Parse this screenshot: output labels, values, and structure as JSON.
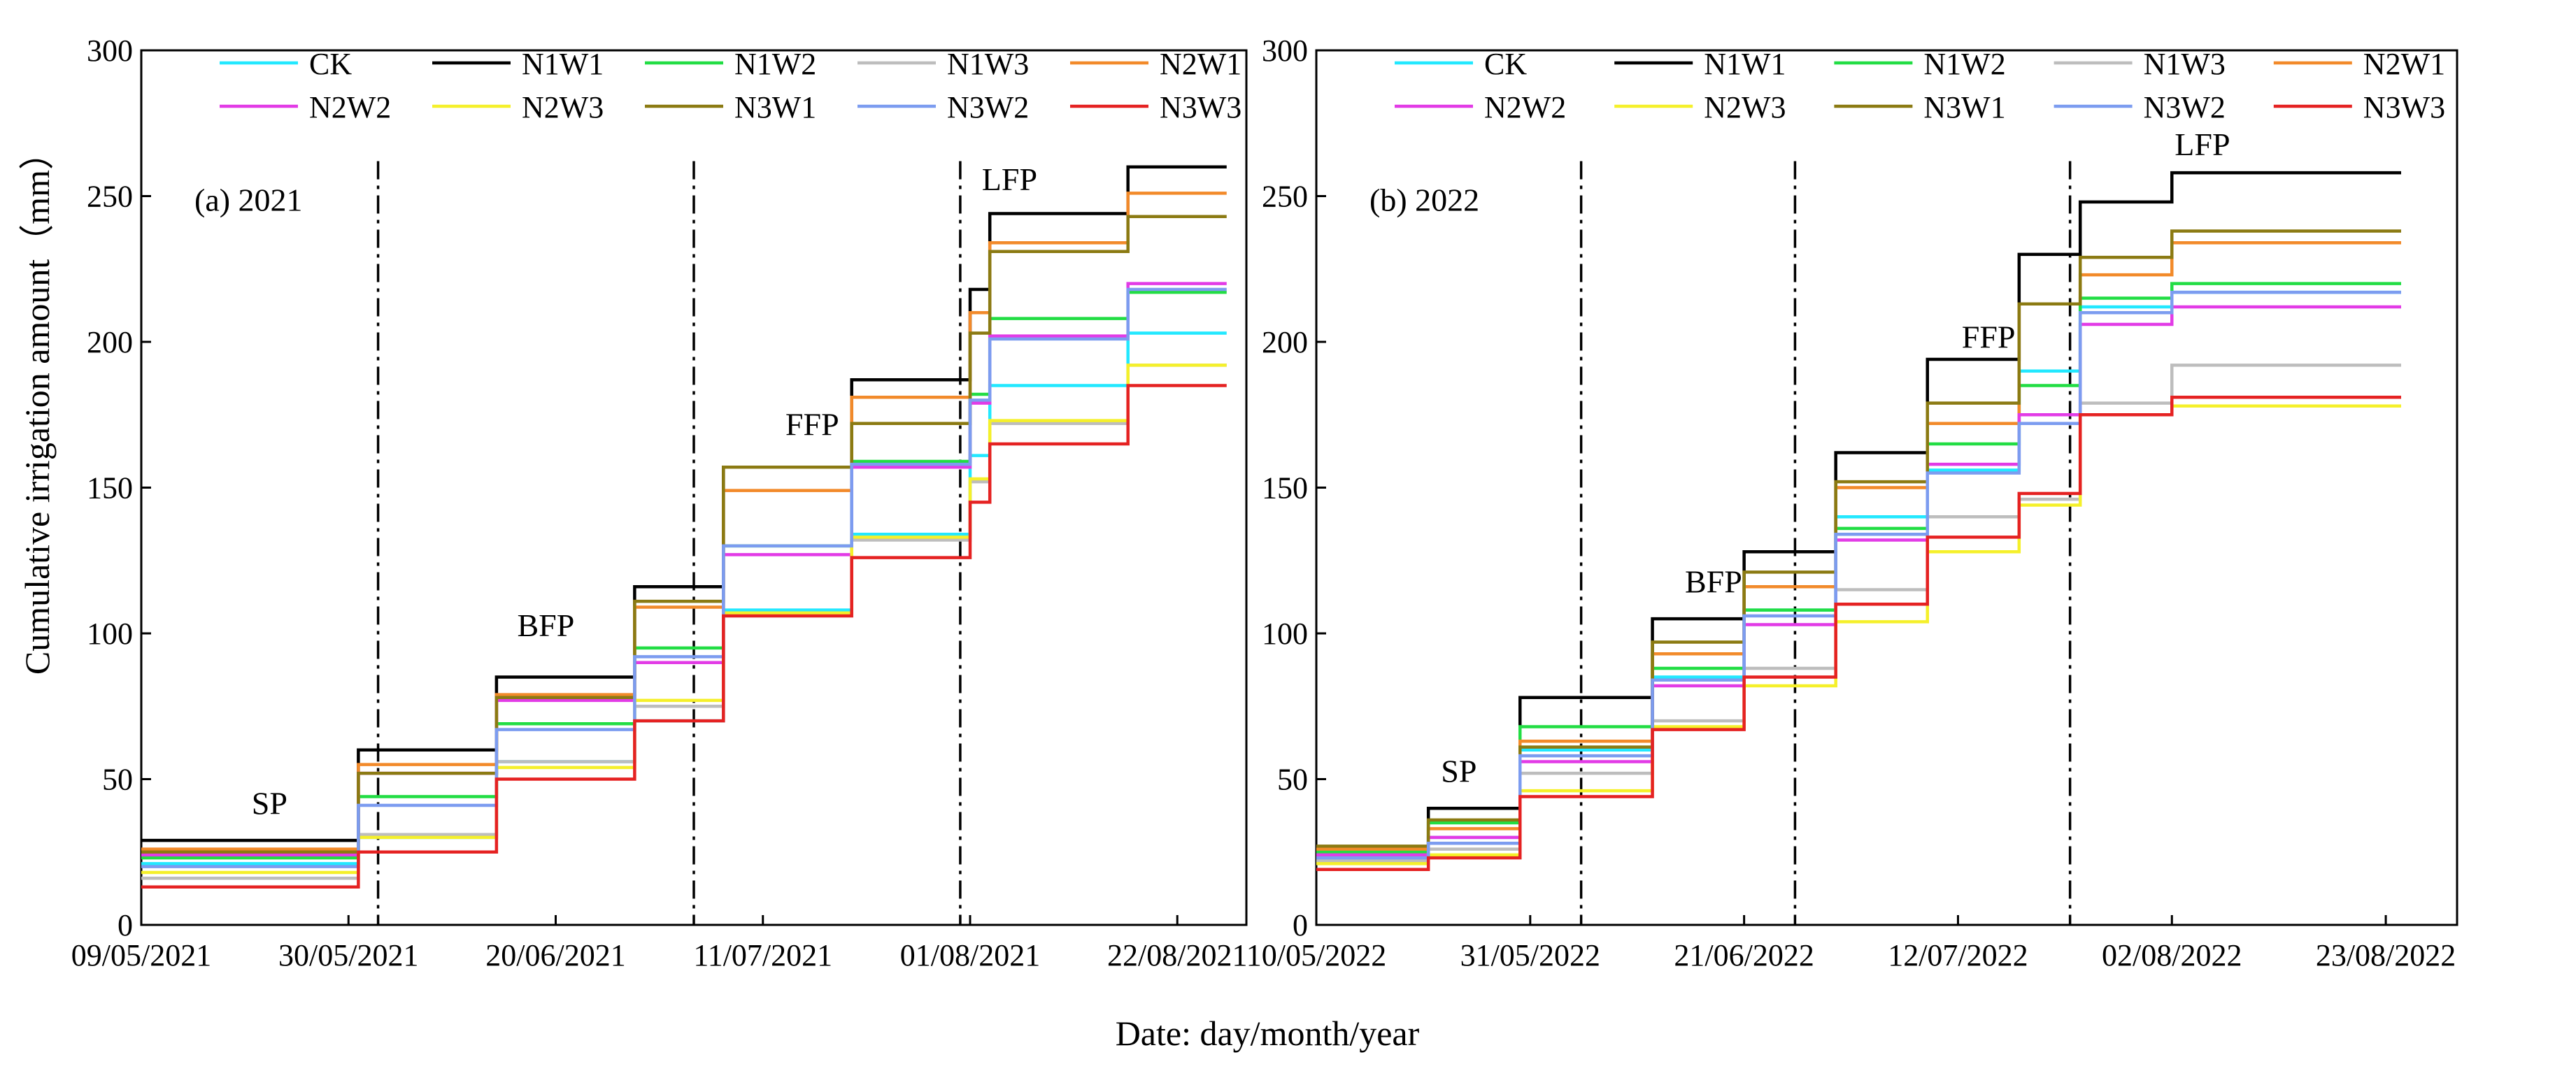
{
  "figure": {
    "ylabel": "Cumulative irrigation amount（mm）",
    "xlabel": "Date: day/month/year"
  },
  "series_styles": [
    {
      "name": "CK",
      "color": "#22e8ff"
    },
    {
      "name": "N1W1",
      "color": "#000000"
    },
    {
      "name": "N1W2",
      "color": "#22dd44"
    },
    {
      "name": "N1W3",
      "color": "#bdbdbd"
    },
    {
      "name": "N2W1",
      "color": "#f28a2a"
    },
    {
      "name": "N2W2",
      "color": "#e23be6"
    },
    {
      "name": "N2W3",
      "color": "#f5f02a"
    },
    {
      "name": "N3W1",
      "color": "#8b7a12"
    },
    {
      "name": "N3W2",
      "color": "#7c9cf0"
    },
    {
      "name": "N3W3",
      "color": "#e52222"
    }
  ],
  "chart_data": [
    {
      "type": "line",
      "step": true,
      "panel_label": "(a) 2021",
      "ylim": [
        0,
        300
      ],
      "yticks": [
        0,
        50,
        100,
        150,
        200,
        250,
        300
      ],
      "xlim": [
        "2021-05-09",
        "2021-08-29"
      ],
      "xticks": [
        "09/05/2021",
        "30/05/2021",
        "20/06/2021",
        "11/07/2021",
        "01/08/2021",
        "22/08/2021"
      ],
      "stage_dividers": [
        "2021-06-02",
        "2021-07-04",
        "2021-07-31"
      ],
      "stages": [
        {
          "label": "SP",
          "x": "2021-05-22",
          "y": 38
        },
        {
          "label": "BFP",
          "x": "2021-06-19",
          "y": 99
        },
        {
          "label": "FFP",
          "x": "2021-07-16",
          "y": 168
        },
        {
          "label": "LFP",
          "x": "2021-08-05",
          "y": 252
        }
      ],
      "step_dates": [
        "2021-05-09",
        "2021-05-31",
        "2021-06-14",
        "2021-06-28",
        "2021-07-07",
        "2021-07-20",
        "2021-08-01",
        "2021-08-03",
        "2021-08-17",
        "2021-08-27"
      ],
      "series": [
        {
          "name": "CK",
          "values": [
            21,
            30,
            56,
            70,
            108,
            134,
            161,
            185,
            203,
            203
          ]
        },
        {
          "name": "N1W1",
          "values": [
            29,
            60,
            85,
            116,
            157,
            187,
            218,
            244,
            260,
            260
          ]
        },
        {
          "name": "N1W2",
          "values": [
            23,
            44,
            69,
            95,
            130,
            159,
            182,
            208,
            217,
            217
          ]
        },
        {
          "name": "N1W3",
          "values": [
            16,
            31,
            56,
            75,
            106,
            132,
            152,
            172,
            192,
            192
          ]
        },
        {
          "name": "N2W1",
          "values": [
            26,
            55,
            79,
            109,
            149,
            181,
            210,
            234,
            251,
            251
          ]
        },
        {
          "name": "N2W2",
          "values": [
            24,
            52,
            77,
            90,
            127,
            157,
            179,
            202,
            220,
            220
          ]
        },
        {
          "name": "N2W3",
          "values": [
            18,
            30,
            54,
            77,
            107,
            133,
            153,
            173,
            192,
            192
          ]
        },
        {
          "name": "N3W1",
          "values": [
            25,
            52,
            78,
            111,
            157,
            172,
            203,
            231,
            243,
            243
          ]
        },
        {
          "name": "N3W2",
          "values": [
            20,
            41,
            67,
            92,
            130,
            158,
            180,
            201,
            218,
            218
          ]
        },
        {
          "name": "N3W3",
          "values": [
            13,
            25,
            50,
            70,
            106,
            126,
            145,
            165,
            185,
            185
          ]
        }
      ]
    },
    {
      "type": "line",
      "step": true,
      "panel_label": "(b) 2022",
      "ylim": [
        0,
        300
      ],
      "yticks": [
        0,
        50,
        100,
        150,
        200,
        250,
        300
      ],
      "xlim": [
        "2022-05-10",
        "2022-08-30"
      ],
      "xticks": [
        "10/05/2022",
        "31/05/2022",
        "21/06/2022",
        "12/07/2022",
        "02/08/2022",
        "23/08/2022"
      ],
      "stage_dividers": [
        "2022-06-05",
        "2022-06-26",
        "2022-07-23"
      ],
      "stages": [
        {
          "label": "SP",
          "x": "2022-05-24",
          "y": 49
        },
        {
          "label": "BFP",
          "x": "2022-06-18",
          "y": 114
        },
        {
          "label": "FFP",
          "x": "2022-07-15",
          "y": 198
        },
        {
          "label": "LFP",
          "x": "2022-08-05",
          "y": 264
        }
      ],
      "step_dates": [
        "2022-05-10",
        "2022-05-21",
        "2022-05-30",
        "2022-06-12",
        "2022-06-21",
        "2022-06-30",
        "2022-07-09",
        "2022-07-18",
        "2022-07-24",
        "2022-08-02",
        "2022-08-13",
        "2022-08-20"
      ],
      "series": [
        {
          "name": "CK",
          "values": [
            24,
            30,
            60,
            85,
            108,
            140,
            156,
            190,
            212,
            217,
            217,
            217
          ]
        },
        {
          "name": "N1W1",
          "values": [
            26,
            40,
            78,
            105,
            128,
            162,
            194,
            230,
            248,
            258,
            258,
            258
          ]
        },
        {
          "name": "N1W2",
          "values": [
            25,
            35,
            68,
            88,
            108,
            136,
            165,
            185,
            215,
            220,
            220,
            220
          ]
        },
        {
          "name": "N1W3",
          "values": [
            22,
            26,
            52,
            70,
            88,
            115,
            140,
            146,
            179,
            192,
            192,
            192
          ]
        },
        {
          "name": "N2W1",
          "values": [
            26,
            33,
            63,
            93,
            116,
            150,
            172,
            213,
            223,
            234,
            234,
            234
          ]
        },
        {
          "name": "N2W2",
          "values": [
            24,
            30,
            56,
            82,
            103,
            132,
            158,
            175,
            206,
            212,
            212,
            212
          ]
        },
        {
          "name": "N2W3",
          "values": [
            21,
            24,
            46,
            68,
            82,
            104,
            128,
            144,
            175,
            178,
            178,
            178
          ]
        },
        {
          "name": "N3W1",
          "values": [
            27,
            36,
            61,
            97,
            121,
            152,
            179,
            213,
            229,
            238,
            238,
            238
          ]
        },
        {
          "name": "N3W2",
          "values": [
            23,
            28,
            58,
            84,
            106,
            134,
            155,
            172,
            210,
            217,
            217,
            217
          ]
        },
        {
          "name": "N3W3",
          "values": [
            19,
            23,
            44,
            67,
            85,
            110,
            133,
            148,
            175,
            181,
            181,
            181
          ]
        }
      ]
    }
  ]
}
